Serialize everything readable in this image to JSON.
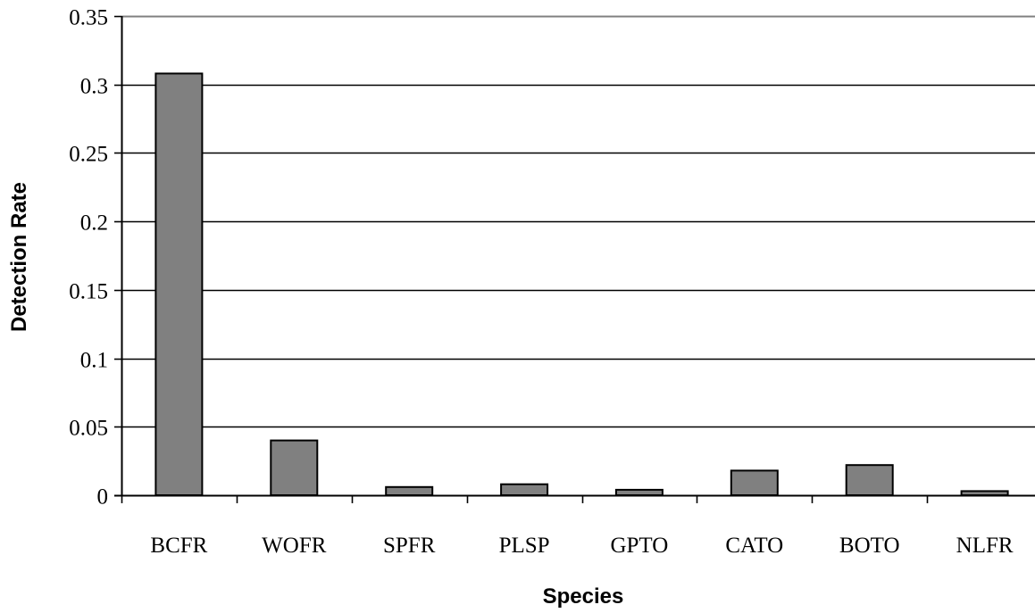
{
  "chart_data": {
    "type": "bar",
    "categories": [
      "BCFR",
      "WOFR",
      "SPFR",
      "PLSP",
      "GPTO",
      "CATO",
      "BOTO",
      "NLFR"
    ],
    "values": [
      0.308,
      0.04,
      0.006,
      0.008,
      0.004,
      0.018,
      0.022,
      0.003
    ],
    "xlabel": "Species",
    "ylabel": "Detection Rate",
    "ylim": [
      0,
      0.35
    ],
    "yticks": [
      "0",
      "0.05",
      "0.1",
      "0.15",
      "0.2",
      "0.25",
      "0.3",
      "0.35"
    ],
    "grid": true,
    "legend": "none",
    "colors": {
      "bar_fill": "#808080",
      "bar_stroke": "#000000",
      "grid": "#000000",
      "top_border": "#808080"
    }
  }
}
